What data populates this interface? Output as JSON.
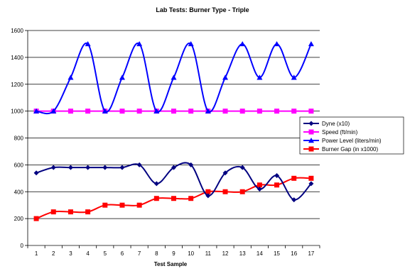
{
  "chart_data": {
    "type": "line",
    "title": "Lab Tests: Burner Type - Triple",
    "xlabel": "Test Sample",
    "ylabel": "",
    "x": [
      1,
      2,
      3,
      4,
      5,
      6,
      7,
      8,
      9,
      10,
      11,
      12,
      13,
      14,
      15,
      16,
      17
    ],
    "ylim": [
      0,
      1600
    ],
    "yticks": [
      0,
      200,
      400,
      600,
      800,
      1000,
      1200,
      1400,
      1600
    ],
    "grid": "horizontal",
    "legend_position": "right",
    "smooth": true,
    "series": [
      {
        "name": "Dyne (x10)",
        "color": "#000080",
        "marker": "diamond",
        "values": [
          540,
          580,
          580,
          580,
          580,
          580,
          600,
          460,
          580,
          600,
          370,
          540,
          580,
          420,
          520,
          340,
          460
        ]
      },
      {
        "name": "Speed (ft/min)",
        "color": "#FF00FF",
        "marker": "square",
        "values": [
          1000,
          1000,
          1000,
          1000,
          1000,
          1000,
          1000,
          1000,
          1000,
          1000,
          1000,
          1000,
          1000,
          1000,
          1000,
          1000,
          1000
        ]
      },
      {
        "name": "Power Level (liters/min)",
        "color": "#0000FF",
        "marker": "triangle",
        "values": [
          1000,
          1000,
          1250,
          1500,
          1000,
          1250,
          1500,
          1000,
          1250,
          1500,
          1000,
          1250,
          1500,
          1250,
          1500,
          1250,
          1500
        ]
      },
      {
        "name": "Burner Gap (in x1000)",
        "color": "#FF0000",
        "marker": "square",
        "values": [
          200,
          250,
          250,
          250,
          300,
          300,
          300,
          350,
          350,
          350,
          400,
          400,
          400,
          450,
          450,
          500,
          500
        ]
      }
    ]
  }
}
